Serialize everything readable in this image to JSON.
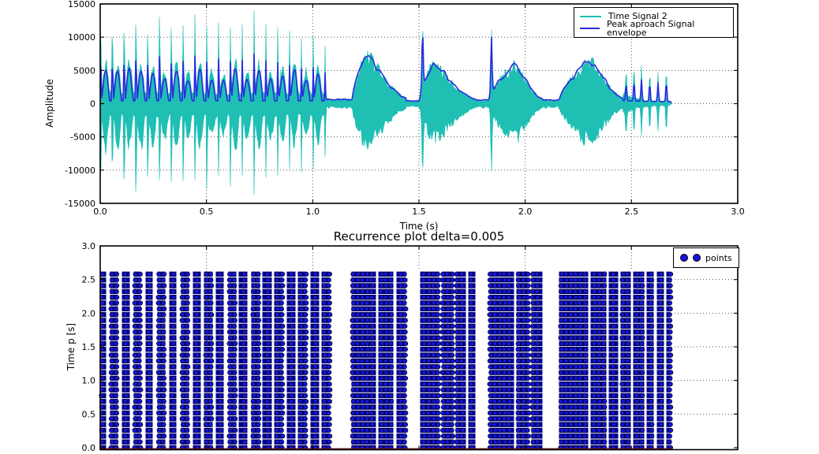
{
  "ui": {
    "top": {
      "ylabel": "Amplitude",
      "xlabel": "Time (s)"
    },
    "bottom": {
      "title": "Recurrence plot delta=0.005",
      "ylabel": "Time p [s]"
    },
    "top_legend": {
      "entries": [
        {
          "label": "Time Signal 2",
          "color": "#1fbfb4"
        },
        {
          "label": "Peak aproach Signal envelope",
          "color": "#2a2ae0"
        }
      ]
    },
    "bottom_legend": {
      "label": "points",
      "marker_color": "#1414dd"
    }
  },
  "colors": {
    "signal_cyan": "#1fbfb4",
    "envelope_blue": "#2a2ae0",
    "dot_blue": "#1414dd",
    "dot_bar_navy": "#000090",
    "grid_gray": "#555555",
    "frame_black": "#000000",
    "baseline_dark_red": "#7a150d",
    "background": "#ffffff"
  },
  "chart_data": [
    {
      "type": "line",
      "title": "",
      "xlabel": "Time (s)",
      "ylabel": "Amplitude",
      "xlim": [
        0.0,
        3.0
      ],
      "ylim": [
        -15000,
        15000
      ],
      "xticks": [
        0.0,
        0.5,
        1.0,
        1.5,
        2.0,
        2.5,
        3.0
      ],
      "xticklabels": [
        "0.0",
        "0.5",
        "1.0",
        "1.5",
        "2.0",
        "2.5",
        "3.0"
      ],
      "yticks": [
        15000,
        10000,
        5000,
        0,
        -5000,
        -10000,
        -15000
      ],
      "yticklabels": [
        "15000",
        "10000",
        "5000",
        "0",
        "-5000",
        "-10000",
        "-15000"
      ],
      "grid": true,
      "legend_position": "upper right",
      "series": [
        {
          "name": "Time Signal 2",
          "kind": "filled-waveform",
          "color": "#1fbfb4",
          "segments": [
            {
              "kind": "rhythm",
              "t": [
                0.0,
                1.062
              ],
              "period": 0.0555,
              "base": 1550,
              "bump_amp": 4600,
              "spike_amp": 10500,
              "spike_max": 12800,
              "spike_max_index": 13
            },
            {
              "kind": "quiet",
              "t": [
                1.062,
                1.185
              ],
              "amp": 620
            },
            {
              "kind": "burst",
              "t": [
                1.185,
                1.44
              ],
              "peak": 8100,
              "peak_t": 1.245
            },
            {
              "kind": "quiet",
              "t": [
                1.44,
                1.502
              ],
              "amp": 430
            },
            {
              "kind": "burst",
              "t": [
                1.502,
                1.765
              ],
              "peak": 6500,
              "peak_t": 1.56,
              "onset_spike_t": 1.517,
              "onset_spike_amp": 9300
            },
            {
              "kind": "quiet",
              "t": [
                1.765,
                1.827
              ],
              "amp": 520
            },
            {
              "kind": "burst",
              "t": [
                1.827,
                2.08
              ],
              "peak": 6500,
              "peak_t": 1.95,
              "onset_spike_t": 1.841,
              "onset_spike_amp": 9600
            },
            {
              "kind": "quiet",
              "t": [
                2.08,
                2.158
              ],
              "amp": 540
            },
            {
              "kind": "burst",
              "t": [
                2.158,
                2.46
              ],
              "peak": 7300,
              "peak_t": 2.3
            },
            {
              "kind": "spike-train",
              "t": [
                2.46,
                2.688
              ],
              "base": 520,
              "spike_times": [
                2.475,
                2.512,
                2.547,
                2.586,
                2.625,
                2.664
              ],
              "spike_amps": [
                4100,
                4700,
                5200,
                4400,
                4500,
                4800
              ]
            },
            {
              "kind": "silence",
              "t": [
                2.688,
                3.0
              ]
            }
          ]
        },
        {
          "name": "Peak aproach Signal envelope",
          "kind": "envelope-line",
          "color": "#2a2ae0"
        }
      ]
    },
    {
      "type": "scatter",
      "title": "Recurrence plot delta=0.005",
      "xlabel": "",
      "ylabel": "Time p [s]",
      "xlim": [
        0.0,
        3.0
      ],
      "ylim": [
        0.0,
        3.0
      ],
      "xticks": [
        0.0,
        0.5,
        1.0,
        1.5,
        2.0,
        2.5,
        3.0
      ],
      "yticks": [
        3.0,
        2.5,
        2.0,
        1.5,
        1.0,
        0.5,
        0.0
      ],
      "yticklabels": [
        "3.0",
        "2.5",
        "2.0",
        "1.5",
        "1.0",
        "0.5",
        "0.0"
      ],
      "grid": true,
      "legend_position": "upper right",
      "legend_label": "points",
      "points": {
        "marker": "circle",
        "color": "#1414dd",
        "rows": {
          "y_start": 0.0,
          "y_end": 2.58,
          "count": 31
        },
        "x_range": [
          0.0,
          2.688
        ],
        "column_gaps": [
          [
            1.08,
            1.18
          ],
          [
            1.44,
            1.5
          ],
          [
            1.767,
            1.827
          ],
          [
            2.08,
            2.155
          ],
          [
            2.688,
            3.0
          ]
        ],
        "thin_gap_period": {
          "start": 0.035,
          "period": 0.0555,
          "count": 19,
          "width": 0.012
        },
        "extra_thin_gaps": [
          1.3,
          1.385,
          1.6,
          1.665,
          1.725,
          1.95,
          2.02,
          2.3,
          2.385,
          2.44,
          2.5,
          2.565,
          2.61,
          2.655
        ]
      }
    }
  ]
}
